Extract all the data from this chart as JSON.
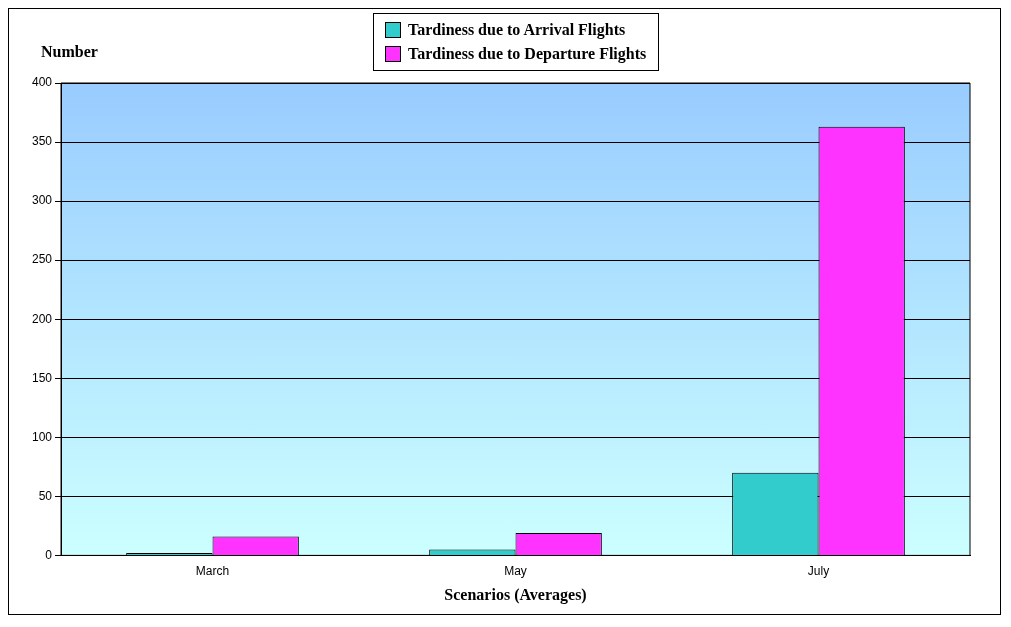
{
  "chart_data": {
    "type": "bar",
    "categories": [
      "March",
      "May",
      "July"
    ],
    "series": [
      {
        "name": "Tardiness due to Arrival Flights",
        "color": "#33cccc",
        "values": [
          2,
          5,
          70
        ]
      },
      {
        "name": "Tardiness due to Departure Flights",
        "color": "#ff33ff",
        "values": [
          16,
          19,
          363
        ]
      }
    ],
    "ylabel": "Number",
    "xlabel": "Scenarios (Averages)",
    "ylim": [
      0,
      400
    ],
    "yticks": [
      0,
      50,
      100,
      150,
      200,
      250,
      300,
      350,
      400
    ],
    "grid": "y",
    "legend": "top"
  }
}
